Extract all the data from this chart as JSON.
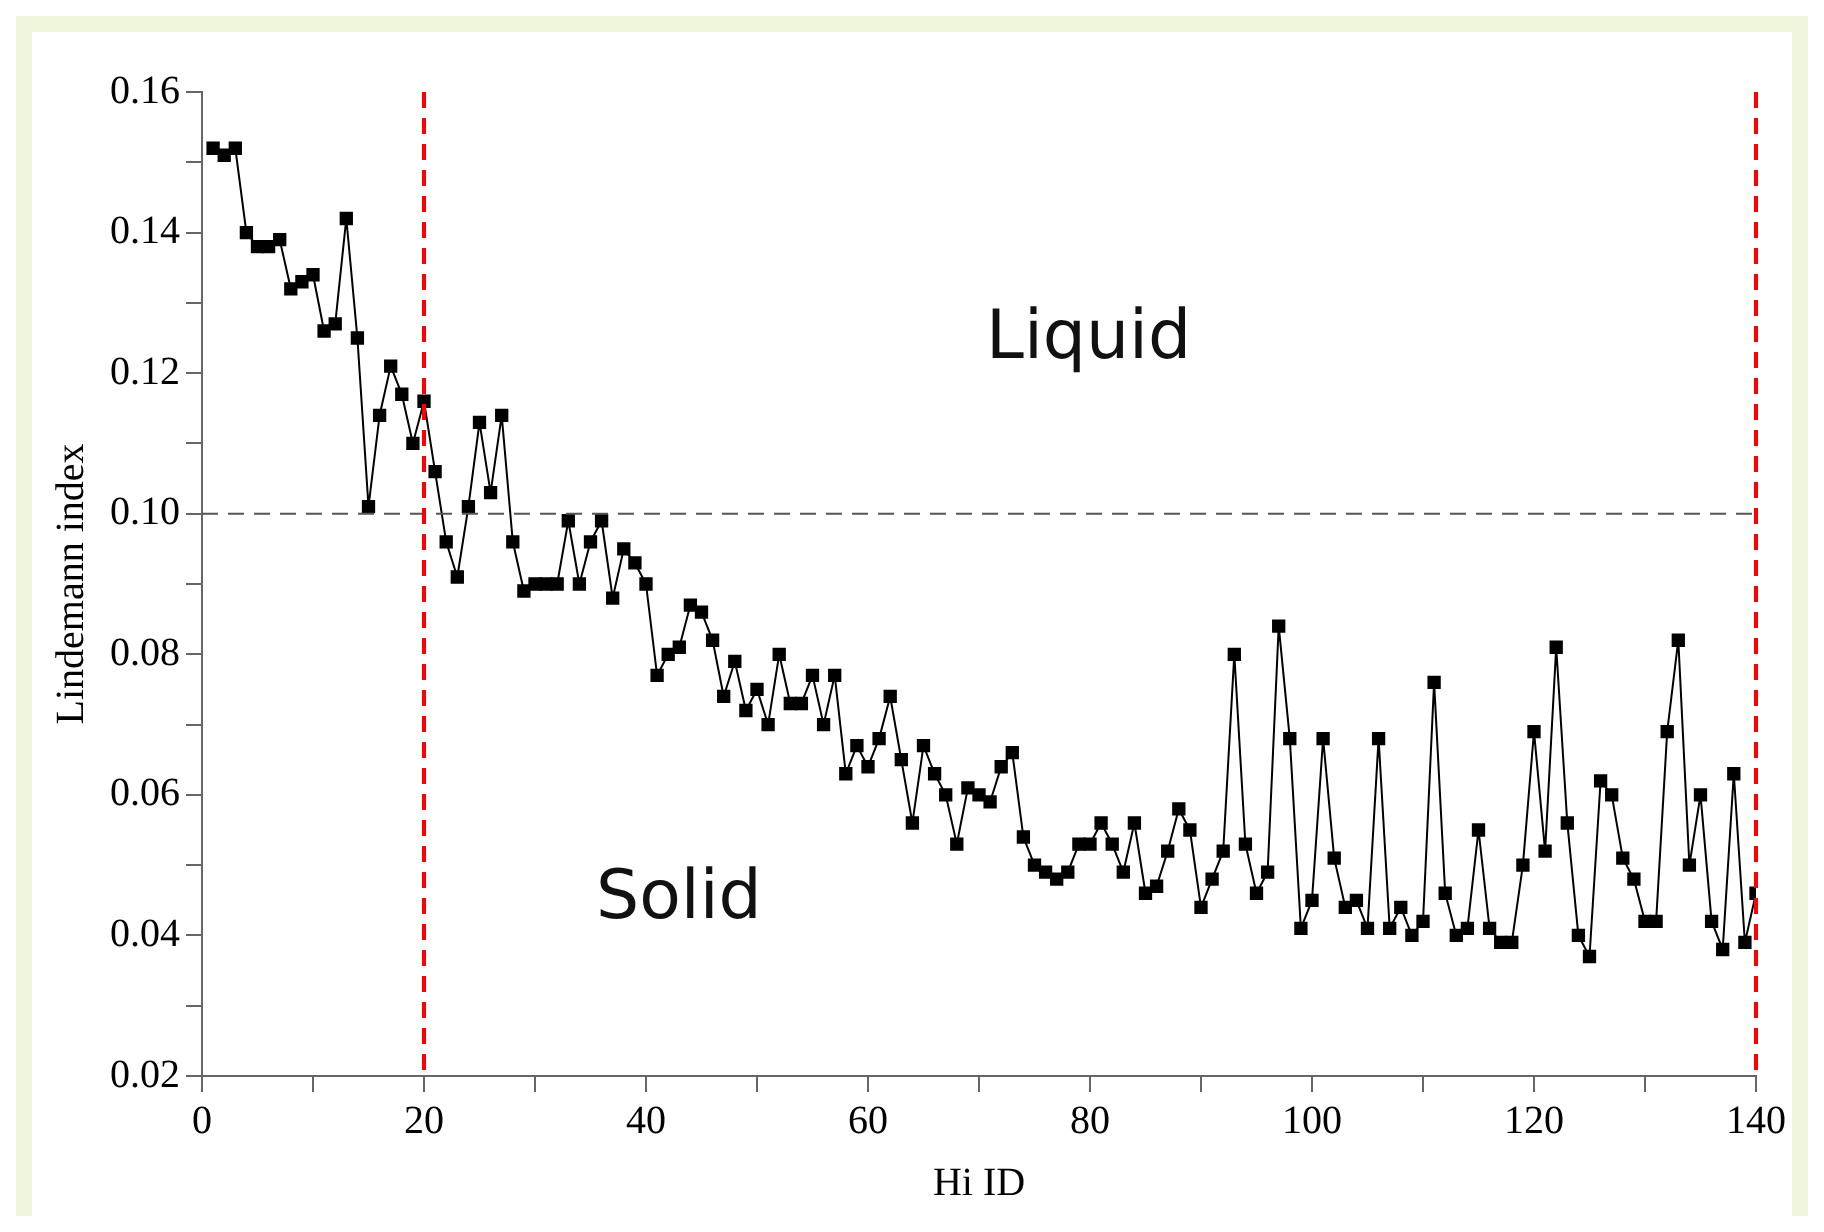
{
  "chart_data": {
    "type": "line",
    "xlabel": "Hi ID",
    "ylabel": "Lindemann index",
    "marker": "square",
    "line_style": "solid",
    "grid": false,
    "legend": false,
    "x": [
      1,
      2,
      3,
      4,
      5,
      6,
      7,
      8,
      9,
      10,
      11,
      12,
      13,
      14,
      15,
      16,
      17,
      18,
      19,
      20,
      21,
      22,
      23,
      24,
      25,
      26,
      27,
      28,
      29,
      30,
      31,
      32,
      33,
      34,
      35,
      36,
      37,
      38,
      39,
      40,
      41,
      42,
      43,
      44,
      45,
      46,
      47,
      48,
      49,
      50,
      51,
      52,
      53,
      54,
      55,
      56,
      57,
      58,
      59,
      60,
      61,
      62,
      63,
      64,
      65,
      66,
      67,
      68,
      69,
      70,
      71,
      72,
      73,
      74,
      75,
      76,
      77,
      78,
      79,
      80,
      81,
      82,
      83,
      84,
      85,
      86,
      87,
      88,
      89,
      90,
      91,
      92,
      93,
      94,
      95,
      96,
      97,
      98,
      99,
      100,
      101,
      102,
      103,
      104,
      105,
      106,
      107,
      108,
      109,
      110,
      111,
      112,
      113,
      114,
      115,
      116,
      117,
      118,
      119,
      120,
      121,
      122,
      123,
      124,
      125,
      126,
      127,
      128,
      129,
      130,
      131,
      132,
      133,
      134,
      135,
      136,
      137,
      138,
      139,
      140
    ],
    "series": [
      {
        "color": "#000000",
        "values": [
          0.152,
          0.151,
          0.152,
          0.14,
          0.138,
          0.138,
          0.139,
          0.132,
          0.133,
          0.134,
          0.126,
          0.127,
          0.142,
          0.125,
          0.101,
          0.114,
          0.121,
          0.117,
          0.11,
          0.116,
          0.106,
          0.096,
          0.091,
          0.101,
          0.113,
          0.103,
          0.114,
          0.096,
          0.089,
          0.09,
          0.09,
          0.09,
          0.099,
          0.09,
          0.096,
          0.099,
          0.088,
          0.095,
          0.093,
          0.09,
          0.077,
          0.08,
          0.081,
          0.087,
          0.086,
          0.082,
          0.074,
          0.079,
          0.072,
          0.075,
          0.07,
          0.08,
          0.073,
          0.073,
          0.077,
          0.07,
          0.077,
          0.063,
          0.067,
          0.064,
          0.068,
          0.074,
          0.065,
          0.056,
          0.067,
          0.063,
          0.06,
          0.053,
          0.061,
          0.06,
          0.059,
          0.064,
          0.066,
          0.054,
          0.05,
          0.049,
          0.048,
          0.049,
          0.053,
          0.053,
          0.056,
          0.053,
          0.049,
          0.056,
          0.046,
          0.047,
          0.052,
          0.058,
          0.055,
          0.044,
          0.048,
          0.052,
          0.08,
          0.053,
          0.046,
          0.049,
          0.084,
          0.068,
          0.041,
          0.045,
          0.068,
          0.051,
          0.044,
          0.045,
          0.041,
          0.068,
          0.041,
          0.044,
          0.04,
          0.042,
          0.076,
          0.046,
          0.04,
          0.041,
          0.055,
          0.041,
          0.039,
          0.039,
          0.05,
          0.069,
          0.052,
          0.081,
          0.056,
          0.04,
          0.037,
          0.062,
          0.06,
          0.051,
          0.048,
          0.042,
          0.042,
          0.069,
          0.082,
          0.05,
          0.06,
          0.042,
          0.038,
          0.063,
          0.039,
          0.046
        ]
      }
    ],
    "xlim": [
      0,
      140
    ],
    "xticks": [
      0,
      {
        "value": 10,
        "label": null
      },
      20,
      {
        "value": 30,
        "label": null
      },
      40,
      {
        "value": 50,
        "label": null
      },
      60,
      {
        "value": 70,
        "label": null
      },
      80,
      {
        "value": 90,
        "label": null
      },
      100,
      {
        "value": 110,
        "label": null
      },
      120,
      {
        "value": 130,
        "label": null
      },
      140
    ],
    "ylim": [
      0.02,
      0.16
    ],
    "yticks": [
      0.02,
      {
        "value": 0.03,
        "label": null
      },
      0.04,
      {
        "value": 0.05,
        "label": null
      },
      0.06,
      {
        "value": 0.07,
        "label": null
      },
      0.08,
      {
        "value": 0.09,
        "label": null
      },
      {
        "value": 0.1,
        "label": "0.10"
      },
      {
        "value": 0.11,
        "label": null
      },
      0.12,
      {
        "value": 0.13,
        "label": null
      },
      0.14,
      {
        "value": 0.15,
        "label": null
      },
      0.16
    ],
    "ref_lines": [
      {
        "axis": "y",
        "value": 0.1,
        "color": "#555555",
        "line_style": "dashed"
      },
      {
        "axis": "x",
        "value": 20,
        "color": "#ff0000",
        "line_style": "dashed"
      },
      {
        "axis": "x",
        "value": 140,
        "color": "#ff0000",
        "line_style": "dashed"
      }
    ],
    "annotations": [
      "Liquid",
      "Solid"
    ]
  }
}
